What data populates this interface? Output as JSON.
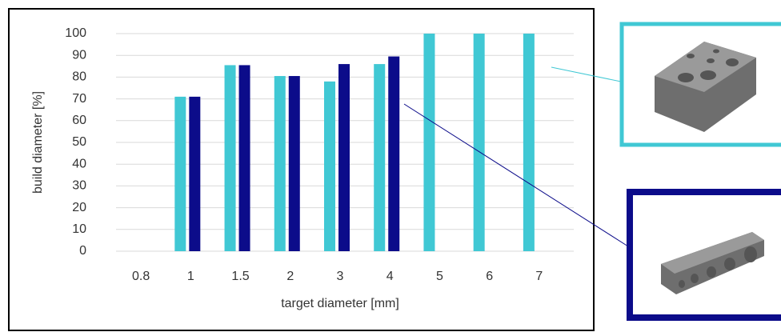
{
  "chart_data": {
    "type": "bar",
    "xlabel": "target diameter [mm]",
    "ylabel": "build diameter [%]",
    "categories": [
      "0.8",
      "1",
      "1.5",
      "2",
      "3",
      "4",
      "5",
      "6",
      "7"
    ],
    "series": [
      {
        "color": "#40c8d4",
        "values": [
          null,
          71,
          85.5,
          80.5,
          78,
          86,
          100,
          100,
          100
        ]
      },
      {
        "color": "#0c0c8a",
        "values": [
          null,
          71,
          85.5,
          80.5,
          86,
          89.5,
          null,
          null,
          null
        ]
      }
    ],
    "ylim": [
      0,
      100
    ],
    "yticks": [
      0,
      10,
      20,
      30,
      40,
      50,
      60,
      70,
      80,
      90,
      100
    ],
    "grid": true
  }
}
